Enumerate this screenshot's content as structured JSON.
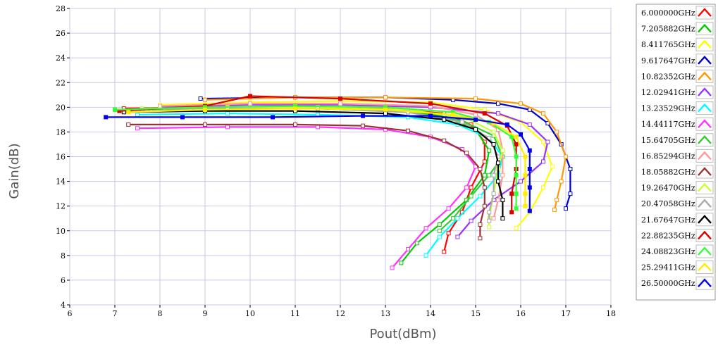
{
  "chart_data": {
    "type": "line",
    "title": "",
    "xlabel": "Pout(dBm)",
    "ylabel": "Gain(dB)",
    "xlim": [
      6,
      18
    ],
    "ylim": [
      4,
      28
    ],
    "xticks": [
      "6",
      "7",
      "8",
      "9",
      "10",
      "11",
      "12",
      "13",
      "14",
      "15",
      "16",
      "17",
      "18"
    ],
    "yticks": [
      "4",
      "6",
      "8",
      "10",
      "12",
      "14",
      "16",
      "18",
      "20",
      "22",
      "24",
      "26",
      "28"
    ],
    "grid": true,
    "legend_position": "right",
    "series": [
      {
        "name": "6.000000GHz",
        "color": "#ff0000",
        "marker": "open",
        "points": [
          [
            7.2,
            19.9
          ],
          [
            9,
            20.0
          ],
          [
            11,
            20.0
          ],
          [
            13,
            19.9
          ],
          [
            14.3,
            19.5
          ],
          [
            14.9,
            18.6
          ],
          [
            15.2,
            17.2
          ],
          [
            15.2,
            15.6
          ],
          [
            14.9,
            13.5
          ],
          [
            14.7,
            11.5
          ],
          [
            14.4,
            9.8
          ],
          [
            14.3,
            8.3
          ]
        ]
      },
      {
        "name": "7.205882GHz",
        "color": "#00cc00",
        "marker": "open",
        "points": [
          [
            7.0,
            19.8
          ],
          [
            9,
            20.0
          ],
          [
            11,
            20.0
          ],
          [
            13,
            19.8
          ],
          [
            14.3,
            19.3
          ],
          [
            15.0,
            18.2
          ],
          [
            15.3,
            16.5
          ],
          [
            15.2,
            14.5
          ],
          [
            14.8,
            12.5
          ],
          [
            14.2,
            10.5
          ],
          [
            13.7,
            9.0
          ],
          [
            13.35,
            7.4
          ]
        ]
      },
      {
        "name": "8.411765GHz",
        "color": "#ffff00",
        "marker": "open",
        "points": [
          [
            8.0,
            20.2
          ],
          [
            10,
            20.4
          ],
          [
            12,
            20.5
          ],
          [
            14,
            20.4
          ],
          [
            15.2,
            19.8
          ],
          [
            16.0,
            18.8
          ],
          [
            16.5,
            17.2
          ],
          [
            16.7,
            15.2
          ],
          [
            16.5,
            13.5
          ],
          [
            16.2,
            11.5
          ],
          [
            15.9,
            10.2
          ]
        ]
      },
      {
        "name": "9.617647GHz",
        "color": "#0000cc",
        "marker": "open",
        "points": [
          [
            8.9,
            20.7
          ],
          [
            11,
            20.8
          ],
          [
            13,
            20.8
          ],
          [
            14.5,
            20.6
          ],
          [
            15.5,
            20.3
          ],
          [
            16.2,
            19.8
          ],
          [
            16.6,
            18.7
          ],
          [
            16.9,
            17.0
          ],
          [
            17.1,
            15.0
          ],
          [
            17.1,
            13.0
          ],
          [
            17.0,
            11.8
          ]
        ]
      },
      {
        "name": "10.82352GHz",
        "color": "#ff9900",
        "marker": "open",
        "points": [
          [
            9.0,
            20.6
          ],
          [
            11,
            20.8
          ],
          [
            13,
            20.8
          ],
          [
            15,
            20.7
          ],
          [
            16.0,
            20.3
          ],
          [
            16.5,
            19.5
          ],
          [
            16.8,
            18.0
          ],
          [
            17.0,
            16.0
          ],
          [
            16.9,
            14.0
          ],
          [
            16.8,
            12.5
          ],
          [
            16.75,
            11.7
          ]
        ]
      },
      {
        "name": "12.02941GHz",
        "color": "#9933ff",
        "marker": "open",
        "points": [
          [
            8.0,
            20.0
          ],
          [
            10,
            20.2
          ],
          [
            12,
            20.2
          ],
          [
            14,
            20.0
          ],
          [
            15.5,
            19.5
          ],
          [
            16.2,
            18.6
          ],
          [
            16.6,
            17.2
          ],
          [
            16.5,
            15.6
          ],
          [
            16.0,
            14.0
          ],
          [
            15.4,
            12.5
          ],
          [
            14.9,
            10.8
          ],
          [
            14.6,
            9.5
          ]
        ]
      },
      {
        "name": "13.23529GHz",
        "color": "#00ffff",
        "marker": "open",
        "points": [
          [
            7.5,
            19.4
          ],
          [
            9.5,
            19.5
          ],
          [
            11.5,
            19.4
          ],
          [
            13.5,
            19.2
          ],
          [
            14.6,
            18.6
          ],
          [
            15.3,
            17.5
          ],
          [
            15.6,
            16.0
          ],
          [
            15.5,
            14.5
          ],
          [
            15.1,
            12.8
          ],
          [
            14.6,
            11.0
          ],
          [
            14.2,
            9.5
          ],
          [
            13.9,
            8.0
          ]
        ]
      },
      {
        "name": "14.44117GHz",
        "color": "#ff33ff",
        "marker": "open",
        "points": [
          [
            7.5,
            18.3
          ],
          [
            9.5,
            18.4
          ],
          [
            11.5,
            18.4
          ],
          [
            13,
            18.2
          ],
          [
            14.0,
            17.6
          ],
          [
            14.7,
            16.6
          ],
          [
            15.0,
            15.2
          ],
          [
            14.8,
            13.5
          ],
          [
            14.4,
            11.8
          ],
          [
            13.9,
            10.2
          ],
          [
            13.5,
            8.5
          ],
          [
            13.15,
            7.0
          ]
        ]
      },
      {
        "name": "15.64705GHz",
        "color": "#33cc33",
        "marker": "open",
        "points": [
          [
            7.8,
            19.8
          ],
          [
            9.5,
            19.9
          ],
          [
            11.5,
            19.9
          ],
          [
            13.5,
            19.6
          ],
          [
            14.7,
            18.9
          ],
          [
            15.4,
            17.7
          ],
          [
            15.6,
            16.0
          ],
          [
            15.3,
            14.5
          ],
          [
            14.9,
            12.8
          ],
          [
            14.5,
            11.0
          ],
          [
            14.2,
            10.0
          ]
        ]
      },
      {
        "name": "16.85294GHz",
        "color": "#ff9999",
        "marker": "open",
        "points": [
          [
            8.0,
            20.1
          ],
          [
            10,
            20.3
          ],
          [
            12,
            20.3
          ],
          [
            14,
            20.1
          ],
          [
            15.0,
            19.4
          ],
          [
            15.5,
            18.2
          ],
          [
            15.6,
            16.5
          ],
          [
            15.6,
            14.5
          ],
          [
            15.5,
            12.5
          ],
          [
            15.4,
            11.0
          ]
        ]
      },
      {
        "name": "18.05882GHz",
        "color": "#993333",
        "marker": "open",
        "points": [
          [
            7.3,
            18.6
          ],
          [
            9,
            18.6
          ],
          [
            11,
            18.6
          ],
          [
            12.5,
            18.5
          ],
          [
            13.5,
            18.1
          ],
          [
            14.3,
            17.3
          ],
          [
            14.8,
            16.3
          ],
          [
            15.1,
            15.0
          ],
          [
            15.2,
            13.5
          ],
          [
            15.2,
            12.0
          ],
          [
            15.1,
            10.5
          ],
          [
            15.1,
            9.4
          ]
        ]
      },
      {
        "name": "19.26470GHz",
        "color": "#ccff33",
        "marker": "open",
        "points": [
          [
            7.6,
            19.9
          ],
          [
            9.5,
            20.0
          ],
          [
            11.5,
            20.0
          ],
          [
            13.5,
            19.8
          ],
          [
            14.8,
            19.1
          ],
          [
            15.4,
            18.0
          ],
          [
            15.6,
            16.5
          ],
          [
            15.5,
            15.0
          ],
          [
            15.4,
            13.0
          ],
          [
            15.3,
            11.0
          ],
          [
            15.3,
            10.3
          ]
        ]
      },
      {
        "name": "20.47058GHz",
        "color": "#aaaaaa",
        "marker": "open",
        "points": [
          [
            7.6,
            19.8
          ],
          [
            9.5,
            19.9
          ],
          [
            11.5,
            19.9
          ],
          [
            13.5,
            19.6
          ],
          [
            14.7,
            18.8
          ],
          [
            15.3,
            17.5
          ],
          [
            15.5,
            16.0
          ],
          [
            15.4,
            14.5
          ],
          [
            15.4,
            13.0
          ],
          [
            15.3,
            11.5
          ],
          [
            15.3,
            10.8
          ]
        ]
      },
      {
        "name": "21.67647GHz",
        "color": "#000000",
        "marker": "open",
        "points": [
          [
            7.2,
            19.6
          ],
          [
            9,
            19.7
          ],
          [
            11,
            19.7
          ],
          [
            13,
            19.5
          ],
          [
            14.3,
            19.0
          ],
          [
            15.0,
            18.2
          ],
          [
            15.4,
            17.0
          ],
          [
            15.5,
            15.5
          ],
          [
            15.5,
            14.0
          ],
          [
            15.6,
            12.5
          ],
          [
            15.6,
            11.0
          ]
        ]
      },
      {
        "name": "22.88235GHz",
        "color": "#dd0000",
        "marker": "filled",
        "points": [
          [
            7.1,
            19.7
          ],
          [
            9,
            20.1
          ],
          [
            10,
            20.9
          ],
          [
            12,
            20.7
          ],
          [
            14,
            20.3
          ],
          [
            15.2,
            19.5
          ],
          [
            15.7,
            18.5
          ],
          [
            15.9,
            17.0
          ],
          [
            15.9,
            15.0
          ],
          [
            15.8,
            13.0
          ],
          [
            15.8,
            11.5
          ]
        ]
      },
      {
        "name": "24.08823GHz",
        "color": "#33ff33",
        "marker": "filled",
        "points": [
          [
            7.0,
            19.8
          ],
          [
            9,
            20.0
          ],
          [
            11,
            20.1
          ],
          [
            13,
            20.0
          ],
          [
            14.5,
            19.6
          ],
          [
            15.3,
            18.8
          ],
          [
            15.8,
            17.6
          ],
          [
            15.9,
            16.0
          ],
          [
            15.9,
            14.5
          ],
          [
            15.9,
            13.0
          ],
          [
            15.9,
            11.8
          ]
        ]
      },
      {
        "name": "25.29411GHz",
        "color": "#ffee00",
        "marker": "filled",
        "points": [
          [
            7.3,
            19.6
          ],
          [
            9,
            19.8
          ],
          [
            11,
            19.9
          ],
          [
            13,
            19.8
          ],
          [
            14.5,
            19.4
          ],
          [
            15.4,
            18.7
          ],
          [
            15.9,
            17.6
          ],
          [
            16.1,
            16.0
          ],
          [
            16.1,
            14.5
          ],
          [
            16.1,
            13.0
          ],
          [
            16.1,
            12.0
          ]
        ]
      },
      {
        "name": "26.50000GHz",
        "color": "#0000ee",
        "marker": "filled",
        "points": [
          [
            6.8,
            19.2
          ],
          [
            8.5,
            19.2
          ],
          [
            10.5,
            19.2
          ],
          [
            12.5,
            19.3
          ],
          [
            14,
            19.3
          ],
          [
            15.0,
            19.0
          ],
          [
            15.7,
            18.6
          ],
          [
            16.0,
            17.8
          ],
          [
            16.2,
            16.5
          ],
          [
            16.2,
            15.0
          ],
          [
            16.2,
            13.5
          ],
          [
            16.2,
            11.6
          ]
        ]
      }
    ]
  }
}
